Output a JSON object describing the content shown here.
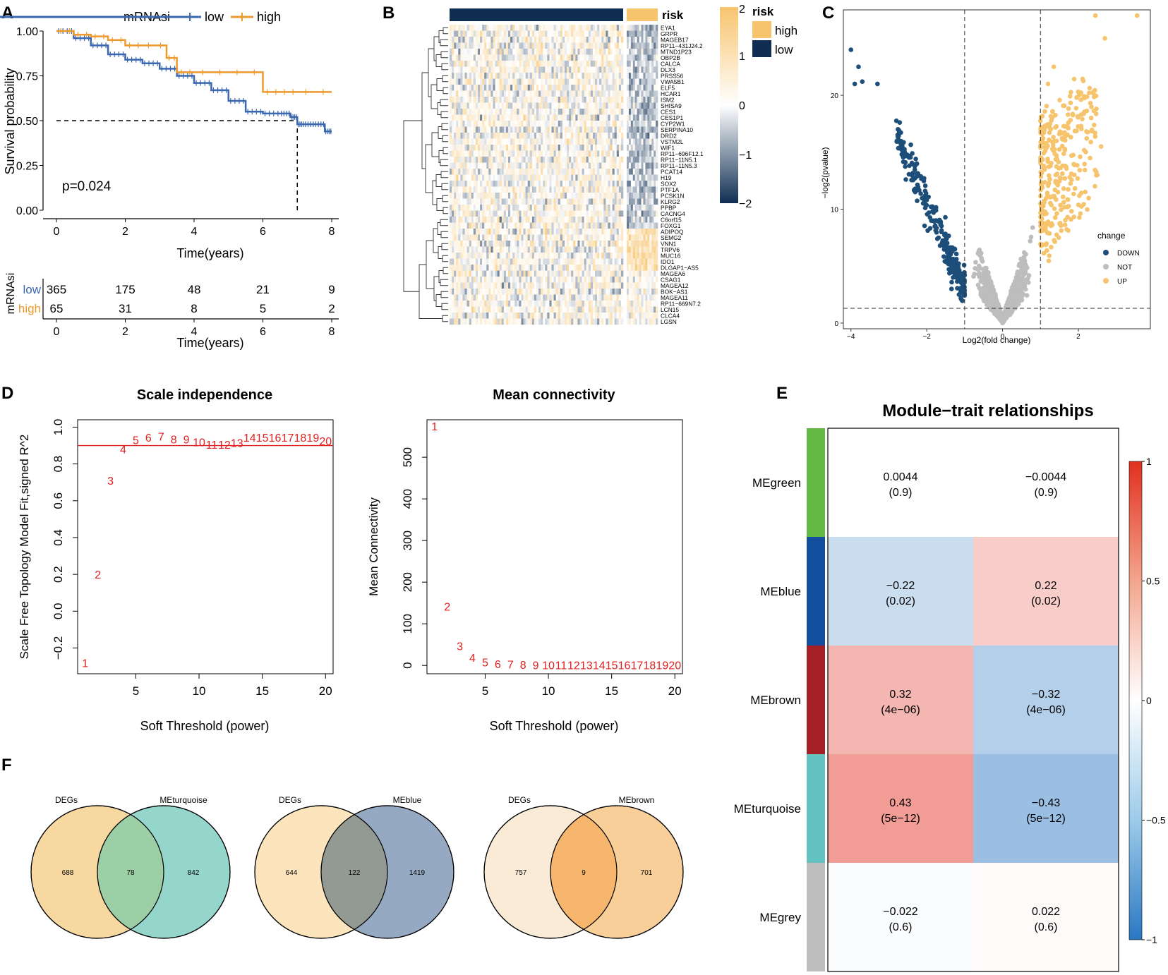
{
  "colors": {
    "low": "#3A67B0",
    "high": "#EE9A2D",
    "hm_high": "#F7C46E",
    "hm_low": "#0F2E52",
    "hm_mid": "#FFFFFF",
    "down": "#1D4E7A",
    "not": "#BDBDBD",
    "up": "#F7C46E",
    "red": "#E02020"
  },
  "chart_data": [
    {
      "panel": "A",
      "type": "line",
      "subtype": "kaplan-meier",
      "legend_title": "mRNAsi",
      "xlabel": "Time(years)",
      "ylabel": "Survival probability",
      "xlim": [
        0,
        8
      ],
      "ylim": [
        0,
        1
      ],
      "xticks": [
        "0",
        "2",
        "4",
        "6",
        "8"
      ],
      "yticks": [
        "0.00",
        "0.25",
        "0.50",
        "0.75",
        "1.00"
      ],
      "pvalue": "p=0.024",
      "median_line": {
        "y": 0.5,
        "x": 7.0
      },
      "series": [
        {
          "name": "low",
          "x": [
            0,
            0.5,
            1,
            1.5,
            2,
            2.5,
            3,
            3.5,
            4,
            4.5,
            5,
            5.5,
            6,
            6.5,
            6.8,
            7.0,
            7.2,
            7.5,
            7.8,
            8.0
          ],
          "y": [
            1.0,
            0.96,
            0.92,
            0.87,
            0.84,
            0.82,
            0.79,
            0.75,
            0.71,
            0.67,
            0.61,
            0.55,
            0.54,
            0.54,
            0.52,
            0.48,
            0.48,
            0.48,
            0.44,
            0.44
          ]
        },
        {
          "name": "high",
          "x": [
            0,
            0.5,
            1,
            1.5,
            2,
            2.5,
            3.2,
            3.5,
            4,
            5,
            6,
            6.5,
            7,
            8.0
          ],
          "y": [
            1.0,
            0.98,
            0.97,
            0.95,
            0.92,
            0.92,
            0.85,
            0.77,
            0.77,
            0.77,
            0.66,
            0.66,
            0.66,
            0.66
          ]
        }
      ],
      "risk_table": {
        "ylabel": "mRNAsi",
        "xlabel": "Time(years)",
        "times": [
          "0",
          "2",
          "4",
          "6",
          "8"
        ],
        "rows": [
          {
            "name": "low",
            "counts": [
              "365",
              "175",
              "48",
              "21",
              "9"
            ]
          },
          {
            "name": "high",
            "counts": [
              "65",
              "31",
              "8",
              "5",
              "2"
            ]
          }
        ]
      }
    },
    {
      "panel": "B",
      "type": "heatmap",
      "annotation_title": "risk",
      "annotation_legend": [
        "high",
        "low"
      ],
      "scale_ticks": [
        "2",
        "1",
        "0",
        "−1",
        "−2"
      ],
      "genes": [
        "EYA1",
        "GRPR",
        "MAGEB17",
        "RP11−431J24.2",
        "MTND1P23",
        "OBP2B",
        "CALCA",
        "DLX3",
        "PRSS56",
        "VWA5B1",
        "ELF5",
        "HCAR1",
        "ISM2",
        "SHISA9",
        "CES1",
        "CES1P1",
        "CYP2W1",
        "SERPINA10",
        "DRD2",
        "VSTM2L",
        "WIF1",
        "RP11−696F12.1",
        "RP11−11N5.1",
        "RP11−11N5.3",
        "PCAT14",
        "H19",
        "SOX2",
        "PTF1A",
        "PCSK1N",
        "KLRG2",
        "PPBP",
        "CACNG4",
        "C6orf15",
        "FOXG1",
        "ADIPOQ",
        "SEMG2",
        "VNN1",
        "TRPV6",
        "MUC16",
        "IDO1",
        "DLGAP1−AS5",
        "MAGEA6",
        "CSAG1",
        "MAGEA12",
        "BOK−AS1",
        "MAGEA11",
        "RP11−669N7.2",
        "LCN15",
        "CLCA4",
        "LGSN"
      ]
    },
    {
      "panel": "C",
      "type": "scatter",
      "subtype": "volcano",
      "xlabel": "Log2(fold change)",
      "ylabel": "−log2(pvalue)",
      "xlim": [
        -4.2,
        3.9
      ],
      "ylim": [
        -0.5,
        27.5
      ],
      "xticks": [
        "−4",
        "−2",
        "0",
        "2"
      ],
      "yticks": [
        "0",
        "10",
        "20"
      ],
      "vlines": [
        -1,
        1
      ],
      "hline": 1.3,
      "legend_title": "change",
      "legend": [
        "DOWN",
        "NOT",
        "UP"
      ]
    },
    {
      "panel": "D",
      "type": "scatter",
      "title": "Scale independence",
      "xlabel": "Soft Threshold (power)",
      "ylabel": "Scale Free Topology Model Fit,signed R^2",
      "xlim": [
        0.4,
        20.6
      ],
      "ylim": [
        -0.34,
        1.04
      ],
      "xticks": [
        "5",
        "10",
        "15",
        "20"
      ],
      "yticks": [
        "−0.2",
        "0.0",
        "0.2",
        "0.4",
        "0.6",
        "0.8",
        "1.0"
      ],
      "hline": 0.9,
      "x": [
        1,
        2,
        3,
        4,
        5,
        6,
        7,
        8,
        9,
        10,
        11,
        12,
        13,
        14,
        15,
        16,
        17,
        18,
        19,
        20
      ],
      "y": [
        -0.28,
        0.2,
        0.71,
        0.88,
        0.93,
        0.945,
        0.95,
        0.935,
        0.935,
        0.92,
        0.905,
        0.905,
        0.915,
        0.945,
        0.945,
        0.945,
        0.945,
        0.945,
        0.945,
        0.925
      ]
    },
    {
      "panel": "D2",
      "type": "scatter",
      "title": "Mean connectivity",
      "xlabel": "Soft Threshold (power)",
      "ylabel": "Mean Connectivity",
      "xlim": [
        0.4,
        20.6
      ],
      "ylim": [
        -20,
        590
      ],
      "xticks": [
        "5",
        "10",
        "15",
        "20"
      ],
      "yticks": [
        "0",
        "100",
        "200",
        "300",
        "400",
        "500"
      ],
      "x": [
        1,
        2,
        3,
        4,
        5,
        6,
        7,
        8,
        9,
        10,
        11,
        12,
        13,
        14,
        15,
        16,
        17,
        18,
        19,
        20
      ],
      "y": [
        575,
        142,
        47,
        19,
        8,
        4,
        3,
        2,
        1,
        1,
        1,
        1,
        1,
        1,
        1,
        1,
        1,
        1,
        1,
        1
      ]
    },
    {
      "panel": "E",
      "type": "heatmap",
      "title": "Module−trait relationships",
      "modules": [
        {
          "name": "MEgreen",
          "color": "#63B946",
          "values": [
            0.0044,
            -0.0044
          ],
          "labels": [
            "0.0044",
            "−0.0044"
          ],
          "pvals": [
            "(0.9)",
            "(0.9)"
          ]
        },
        {
          "name": "MEblue",
          "color": "#134E9E",
          "values": [
            -0.22,
            0.22
          ],
          "labels": [
            "−0.22",
            "0.22"
          ],
          "pvals": [
            "(0.02)",
            "(0.02)"
          ]
        },
        {
          "name": "MEbrown",
          "color": "#A41F26",
          "values": [
            0.32,
            -0.32
          ],
          "labels": [
            "0.32",
            "−0.32"
          ],
          "pvals": [
            "(4e−06)",
            "(4e−06)"
          ]
        },
        {
          "name": "MEturquoise",
          "color": "#64C2C1",
          "values": [
            0.43,
            -0.43
          ],
          "labels": [
            "0.43",
            "−0.43"
          ],
          "pvals": [
            "(5e−12)",
            "(5e−12)"
          ]
        },
        {
          "name": "MEgrey",
          "color": "#BEBEBE",
          "values": [
            -0.022,
            0.022
          ],
          "labels": [
            "−0.022",
            "0.022"
          ],
          "pvals": [
            "(0.6)",
            "(0.6)"
          ]
        }
      ],
      "scale_ticks": [
        "1",
        "0.5",
        "0",
        "−0.5",
        "−1"
      ]
    },
    {
      "panel": "F",
      "type": "venn",
      "diagrams": [
        {
          "left": "DEGs",
          "right": "MEturquoise",
          "left_only": "688",
          "both": "78",
          "right_only": "842",
          "left_color": "#F6D8A0",
          "right_color": "#95D6CC",
          "mid_color": "#9CCFA6"
        },
        {
          "left": "DEGs",
          "right": "MEblue",
          "left_only": "644",
          "both": "122",
          "right_only": "1419",
          "left_color": "#FCE5BC",
          "right_color": "#95A9C2",
          "mid_color": "#939A93"
        },
        {
          "left": "DEGs",
          "right": "MEbrown",
          "left_only": "757",
          "both": "9",
          "right_only": "701",
          "left_color": "#F9EBD6",
          "right_color": "#F8CF98",
          "mid_color": "#F6B66E"
        }
      ]
    }
  ],
  "panels": {
    "A": "A",
    "B": "B",
    "C": "C",
    "D": "D",
    "E": "E",
    "F": "F"
  }
}
